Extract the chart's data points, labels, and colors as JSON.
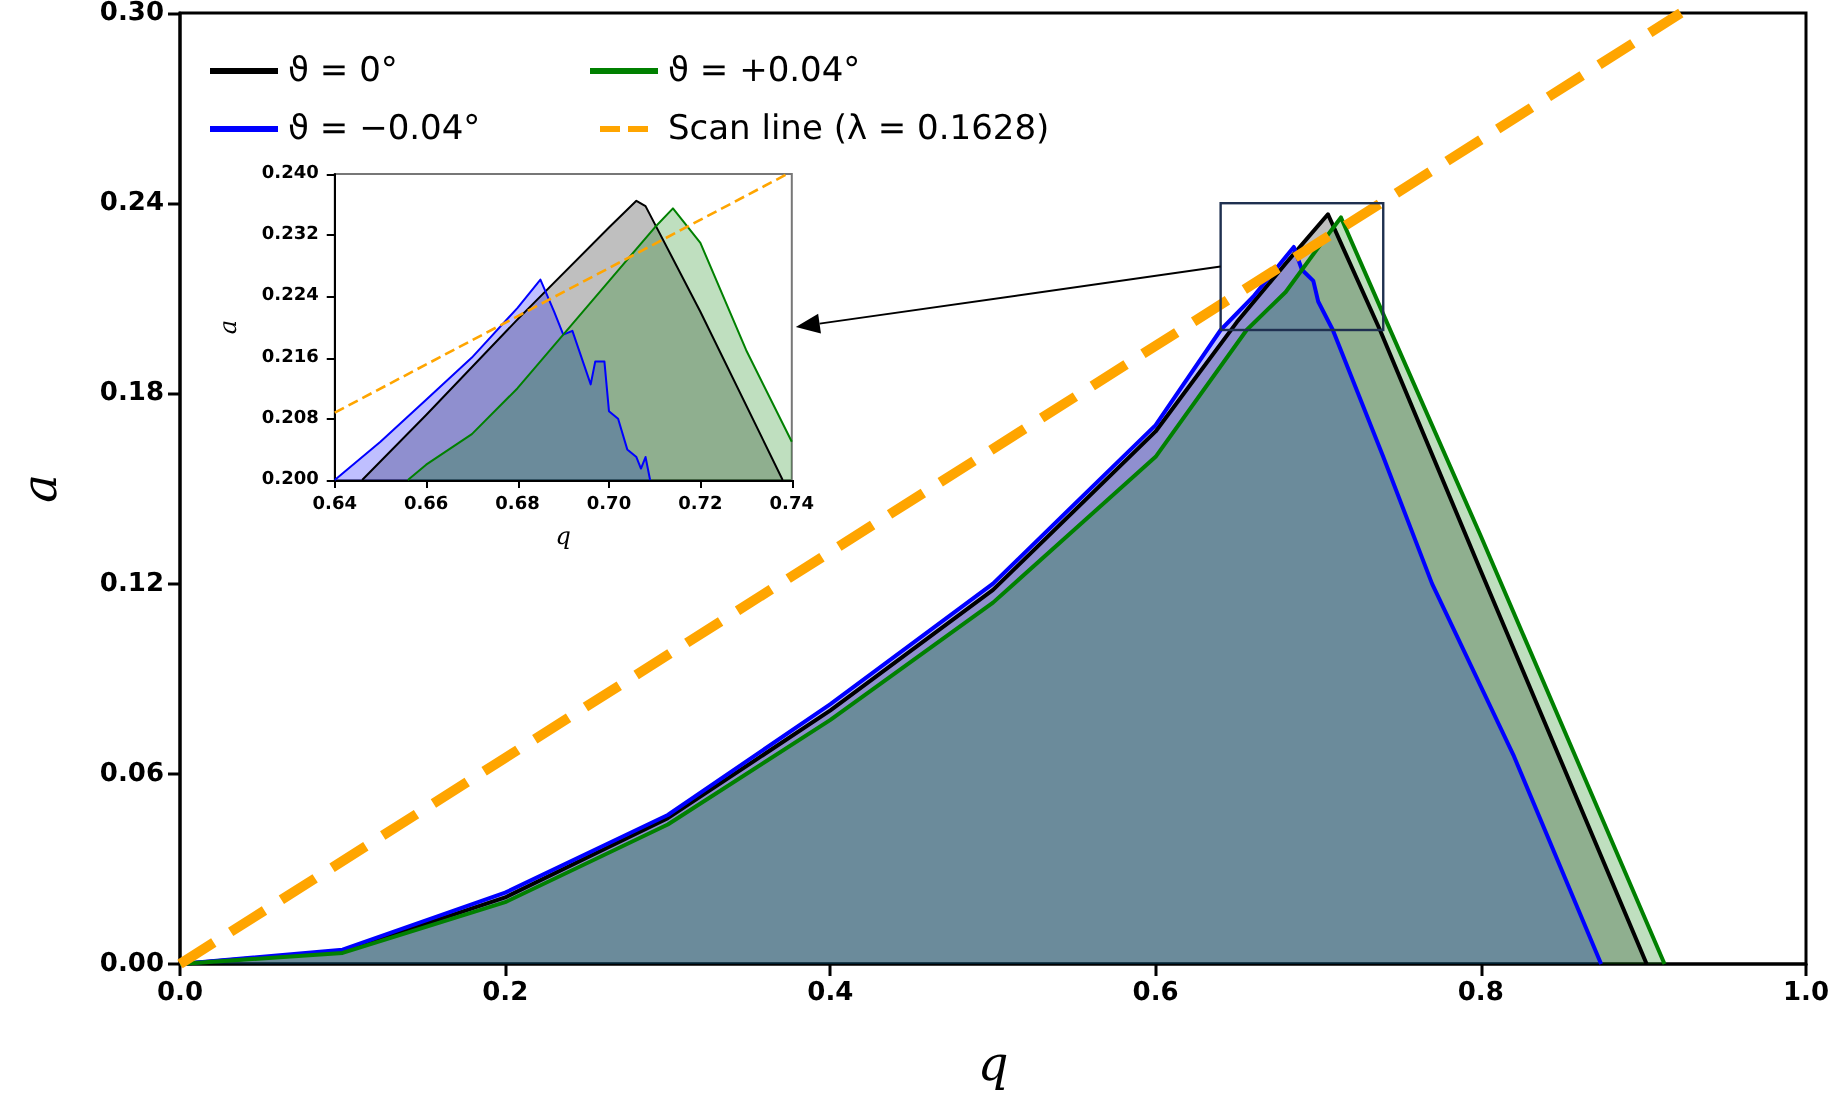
{
  "chart_data": [
    {
      "type": "area",
      "xlabel": "q",
      "ylabel": "a",
      "legend": "top left",
      "xlim": [
        0,
        1
      ],
      "ylim": [
        0,
        0.3
      ],
      "xticks": [
        {
          "value": 0,
          "label": "0.0"
        },
        {
          "value": 0.2,
          "label": "0.2"
        },
        {
          "value": 0.4,
          "label": "0.4"
        },
        {
          "value": 0.6,
          "label": "0.6"
        },
        {
          "value": 0.8,
          "label": "0.8"
        },
        {
          "value": 1,
          "label": "1.0"
        }
      ],
      "yticks": [
        {
          "value": 0,
          "label": "0.00"
        },
        {
          "value": 0.06,
          "label": "0.06"
        },
        {
          "value": 0.12,
          "label": "0.12"
        },
        {
          "value": 0.18,
          "label": "0.18"
        },
        {
          "value": 0.24,
          "label": "0.24"
        },
        {
          "value": 0.3,
          "label": "0.30"
        }
      ],
      "series": [
        {
          "name": "ϑ = 0°",
          "color": "#000000",
          "x": [
            0,
            0.1,
            0.2,
            0.3,
            0.4,
            0.5,
            0.6,
            0.65,
            0.68,
            0.706,
            0.738,
            0.8,
            0.902
          ],
          "values": [
            0,
            0.004,
            0.021,
            0.046,
            0.08,
            0.118,
            0.168,
            0.2025,
            0.221,
            0.2365,
            0.2,
            0.124,
            0
          ]
        },
        {
          "name": "ϑ = −0.04°",
          "color": "#0000ff",
          "x": [
            0,
            0.1,
            0.2,
            0.3,
            0.4,
            0.5,
            0.6,
            0.64,
            0.66,
            0.685,
            0.69,
            0.697,
            0.7,
            0.709,
            0.74,
            0.77,
            0.82,
            0.874
          ],
          "values": [
            0,
            0.0045,
            0.0225,
            0.047,
            0.082,
            0.12,
            0.17,
            0.2,
            0.2105,
            0.2262,
            0.219,
            0.2155,
            0.209,
            0.2,
            0.16,
            0.12,
            0.066,
            0
          ]
        },
        {
          "name": "ϑ = +0.04°",
          "color": "#008000",
          "x": [
            0,
            0.1,
            0.2,
            0.3,
            0.4,
            0.5,
            0.6,
            0.656,
            0.68,
            0.7,
            0.714,
            0.74,
            0.8,
            0.913
          ],
          "values": [
            0,
            0.0035,
            0.0195,
            0.044,
            0.077,
            0.114,
            0.16,
            0.2,
            0.212,
            0.226,
            0.2355,
            0.205,
            0.135,
            0
          ]
        },
        {
          "name": "Scan line (λ = 0.1628)",
          "type": "line",
          "line_style": "dashed",
          "color": "#ffa500",
          "x": [
            0,
            0.923
          ],
          "values": [
            0,
            0.3
          ]
        }
      ]
    },
    {
      "type": "area",
      "xlabel": "q",
      "ylabel": "a",
      "xlim": [
        0.64,
        0.74
      ],
      "ylim": [
        0.2,
        0.24
      ],
      "xticks": [
        {
          "value": 0.64,
          "label": "0.64"
        },
        {
          "value": 0.66,
          "label": "0.66"
        },
        {
          "value": 0.68,
          "label": "0.68"
        },
        {
          "value": 0.7,
          "label": "0.70"
        },
        {
          "value": 0.72,
          "label": "0.72"
        },
        {
          "value": 0.74,
          "label": "0.74"
        }
      ],
      "yticks": [
        {
          "value": 0.2,
          "label": "0.200"
        },
        {
          "value": 0.208,
          "label": "0.208"
        },
        {
          "value": 0.216,
          "label": "0.216"
        },
        {
          "value": 0.224,
          "label": "0.224"
        },
        {
          "value": 0.232,
          "label": "0.232"
        },
        {
          "value": 0.24,
          "label": "0.240"
        }
      ],
      "series": [
        {
          "color": "#000000",
          "x": [
            0.646,
            0.66,
            0.68,
            0.7,
            0.706,
            0.708,
            0.72,
            0.738
          ],
          "values": [
            0.2,
            0.2085,
            0.221,
            0.233,
            0.2365,
            0.2358,
            0.222,
            0.2
          ]
        },
        {
          "color": "#0000ff",
          "x": [
            0.64,
            0.65,
            0.66,
            0.67,
            0.68,
            0.685,
            0.688,
            0.69,
            0.692,
            0.694,
            0.696,
            0.697,
            0.699,
            0.7,
            0.702,
            0.704,
            0.706,
            0.707,
            0.708,
            0.709
          ],
          "values": [
            0.2,
            0.205,
            0.2105,
            0.216,
            0.2225,
            0.2262,
            0.222,
            0.219,
            0.2195,
            0.216,
            0.2125,
            0.2155,
            0.2155,
            0.209,
            0.208,
            0.204,
            0.203,
            0.2015,
            0.203,
            0.2
          ]
        },
        {
          "color": "#008000",
          "x": [
            0.656,
            0.66,
            0.67,
            0.68,
            0.69,
            0.7,
            0.71,
            0.714,
            0.72,
            0.73,
            0.74
          ],
          "values": [
            0.2,
            0.202,
            0.206,
            0.212,
            0.219,
            0.226,
            0.233,
            0.2355,
            0.231,
            0.217,
            0.205
          ]
        },
        {
          "type": "line",
          "line_style": "dashed",
          "color": "#ffa500",
          "x": [
            0.64,
            0.739
          ],
          "values": [
            0.2088,
            0.24
          ]
        }
      ]
    }
  ]
}
